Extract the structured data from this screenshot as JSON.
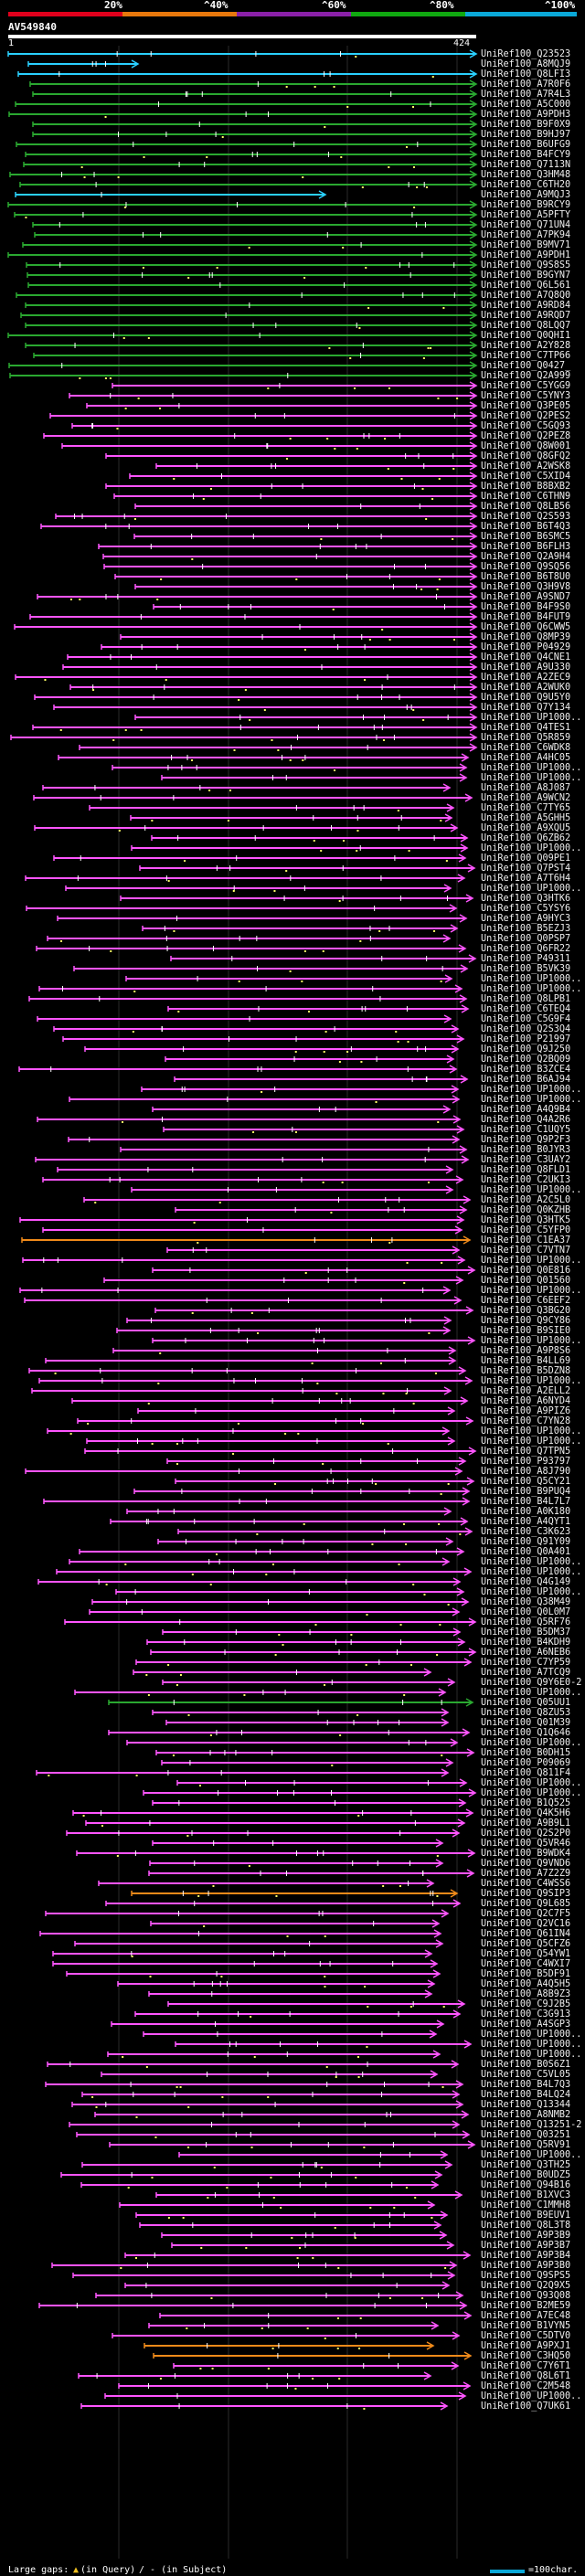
{
  "legend": {
    "ticks": [
      "20%",
      "^40%",
      "^60%",
      "^80%",
      "^100%"
    ],
    "colors": [
      "#e0001c",
      "#e8780c",
      "#8a20a8",
      "#10a810",
      "#0aa8d8"
    ]
  },
  "query": {
    "name": "AV549840",
    "start": "1",
    "end": "424"
  },
  "colors": {
    "bar": "#ff55ff",
    "long_bar": "#2ad0ff",
    "green_bar": "#2aa830",
    "orange_bar": "#f08a1a",
    "gap_mark": "#ffffff",
    "dot": "#ffff66",
    "grid": "#2a2a2a"
  },
  "hits": [
    {
      "id": "UniRef100_Q23523",
      "color": "c"
    },
    {
      "id": "UniRef100_A8MQJ9",
      "color": "c"
    },
    {
      "id": "UniRef100_Q8LFI3",
      "color": "c"
    },
    {
      "id": "UniRef100_A7R0F6",
      "color": "g"
    },
    {
      "id": "UniRef100_A7R4L3",
      "color": "g"
    },
    {
      "id": "UniRef100_A5C000",
      "color": "g"
    },
    {
      "id": "UniRef100_A9PDH3",
      "color": "g"
    },
    {
      "id": "UniRef100_B9F0X9",
      "color": "g"
    },
    {
      "id": "UniRef100_B9HJ97",
      "color": "g"
    },
    {
      "id": "UniRef100_B6UFG9",
      "color": "g"
    },
    {
      "id": "UniRef100_B4FCY9",
      "color": "g"
    },
    {
      "id": "UniRef100_Q7113N",
      "color": "g"
    },
    {
      "id": "UniRef100_Q3HM48",
      "color": "g"
    },
    {
      "id": "UniRef100_C6TH20",
      "color": "g"
    },
    {
      "id": "UniRef100_A9MQJ3",
      "color": "c"
    },
    {
      "id": "UniRef100_B9RCY9",
      "color": "g"
    },
    {
      "id": "UniRef100_A5PFTY",
      "color": "g"
    },
    {
      "id": "UniRef100_Q71UN4",
      "color": "g"
    },
    {
      "id": "UniRef100_A7PK94",
      "color": "g"
    },
    {
      "id": "UniRef100_B9MV71",
      "color": "g"
    },
    {
      "id": "UniRef100_A9PDH1",
      "color": "g"
    },
    {
      "id": "UniRef100_Q9S8S5",
      "color": "g"
    },
    {
      "id": "UniRef100_B9GYN7",
      "color": "g"
    },
    {
      "id": "UniRef100_Q6L561",
      "color": "g"
    },
    {
      "id": "UniRef100_A7Q8Q0",
      "color": "g"
    },
    {
      "id": "UniRef100_A9RD84",
      "color": "g"
    },
    {
      "id": "UniRef100_A9RQD7",
      "color": "g"
    },
    {
      "id": "UniRef100_Q8LQQ7",
      "color": "g"
    },
    {
      "id": "UniRef100_Q0QHI1",
      "color": "g"
    },
    {
      "id": "UniRef100_A2Y828",
      "color": "g"
    },
    {
      "id": "UniRef100_C7TP66",
      "color": "g"
    },
    {
      "id": "UniRef100_Q0427_",
      "color": "g"
    },
    {
      "id": "UniRef100_Q2A999",
      "color": "g"
    },
    {
      "id": "UniRef100_C5YGG9",
      "color": "p"
    },
    {
      "id": "UniRef100_C5YNY3",
      "color": "p"
    },
    {
      "id": "UniRef100_Q3PE05",
      "color": "p"
    },
    {
      "id": "UniRef100_Q2PES2",
      "color": "p"
    },
    {
      "id": "UniRef100_C5GQ93",
      "color": "p"
    },
    {
      "id": "UniRef100_Q2PEZ8",
      "color": "p"
    },
    {
      "id": "UniRef100_Q8W001",
      "color": "p"
    },
    {
      "id": "UniRef100_Q8GFQ2",
      "color": "p"
    },
    {
      "id": "UniRef100_A2WSK8",
      "color": "p"
    },
    {
      "id": "UniRef100_C5XID4",
      "color": "p"
    },
    {
      "id": "UniRef100_B8BXB2",
      "color": "p"
    },
    {
      "id": "UniRef100_C6THN9",
      "color": "p"
    },
    {
      "id": "UniRef100_Q8LB56",
      "color": "p"
    },
    {
      "id": "UniRef100_Q2S593",
      "color": "p"
    },
    {
      "id": "UniRef100_B6T4Q3",
      "color": "p"
    },
    {
      "id": "UniRef100_B6SMC5",
      "color": "p"
    },
    {
      "id": "UniRef100_B6FLH3",
      "color": "p"
    },
    {
      "id": "UniRef100_Q2A9H4",
      "color": "p"
    },
    {
      "id": "UniRef100_Q9SQ56",
      "color": "p"
    },
    {
      "id": "UniRef100_B6T8U0",
      "color": "p"
    },
    {
      "id": "UniRef100_Q3H9V8",
      "color": "p"
    },
    {
      "id": "UniRef100_A9SND7",
      "color": "p"
    },
    {
      "id": "UniRef100_B4F9S0",
      "color": "p"
    },
    {
      "id": "UniRef100_B4FUT9",
      "color": "p"
    },
    {
      "id": "UniRef100_Q6CWW5",
      "color": "p"
    },
    {
      "id": "UniRef100_Q8MP39",
      "color": "p"
    },
    {
      "id": "UniRef100_P04929",
      "color": "p"
    },
    {
      "id": "UniRef100_Q4CNE1",
      "color": "p"
    },
    {
      "id": "UniRef100_A9U330",
      "color": "p"
    },
    {
      "id": "UniRef100_A2ZEC9",
      "color": "p"
    },
    {
      "id": "UniRef100_A2WUK0",
      "color": "p"
    },
    {
      "id": "UniRef100_Q9U5Y0",
      "color": "p"
    },
    {
      "id": "UniRef100_Q7Y134",
      "color": "p"
    },
    {
      "id": "UniRef100_UP1000..",
      "color": "p"
    },
    {
      "id": "UniRef100_Q4TES1",
      "color": "p"
    },
    {
      "id": "UniRef100_Q5R859",
      "color": "p"
    },
    {
      "id": "UniRef100_C6WDK8",
      "color": "p"
    },
    {
      "id": "UniRef100_A4HC05",
      "color": "p"
    },
    {
      "id": "UniRef100_UP1000..",
      "color": "p"
    },
    {
      "id": "UniRef100_UP1000..",
      "color": "p"
    },
    {
      "id": "UniRef100_A8J087",
      "color": "p"
    },
    {
      "id": "UniRef100_A9WCN2",
      "color": "p"
    },
    {
      "id": "UniRef100_C7TY65",
      "color": "p"
    },
    {
      "id": "UniRef100_A5GHH5",
      "color": "p"
    },
    {
      "id": "UniRef100_A9XQU5",
      "color": "p"
    },
    {
      "id": "UniRef100_Q6ZB62",
      "color": "p"
    },
    {
      "id": "UniRef100_UP1000..",
      "color": "p"
    },
    {
      "id": "UniRef100_Q09PE1",
      "color": "p"
    },
    {
      "id": "UniRef100_Q7PST4",
      "color": "p"
    },
    {
      "id": "UniRef100_A7T6H4",
      "color": "p"
    },
    {
      "id": "UniRef100_UP1000..",
      "color": "p"
    },
    {
      "id": "UniRef100_Q3HTK6",
      "color": "p"
    },
    {
      "id": "UniRef100_C5YSY6",
      "color": "p"
    },
    {
      "id": "UniRef100_A9HYC3",
      "color": "p"
    },
    {
      "id": "UniRef100_B5EZJ3",
      "color": "p"
    },
    {
      "id": "UniRef100_Q0PSP7",
      "color": "p"
    },
    {
      "id": "UniRef100_Q6FR22",
      "color": "p"
    },
    {
      "id": "UniRef100_P49311",
      "color": "p"
    },
    {
      "id": "UniRef100_B5VK39",
      "color": "p"
    },
    {
      "id": "UniRef100_UP1000..",
      "color": "p"
    },
    {
      "id": "UniRef100_UP1000..",
      "color": "p"
    },
    {
      "id": "UniRef100_Q8LPB1",
      "color": "p"
    },
    {
      "id": "UniRef100_C6TEQ4",
      "color": "p"
    },
    {
      "id": "UniRef100_C5G9F4",
      "color": "p"
    },
    {
      "id": "UniRef100_Q2S3Q4",
      "color": "p"
    },
    {
      "id": "UniRef100_P21997",
      "color": "p"
    },
    {
      "id": "UniRef100_Q9J250",
      "color": "p"
    },
    {
      "id": "UniRef100_Q2BQ09",
      "color": "p"
    },
    {
      "id": "UniRef100_B3ZCE4",
      "color": "p"
    },
    {
      "id": "UniRef100_B6AJ94",
      "color": "p"
    },
    {
      "id": "UniRef100_UP1000..",
      "color": "p"
    },
    {
      "id": "UniRef100_UP1000..",
      "color": "p"
    },
    {
      "id": "UniRef100_A4Q9B4",
      "color": "p"
    },
    {
      "id": "UniRef100_Q4A2R6",
      "color": "p"
    },
    {
      "id": "UniRef100_C1UQY5",
      "color": "p"
    },
    {
      "id": "UniRef100_Q9P2F3",
      "color": "p"
    },
    {
      "id": "UniRef100_B0JYR3",
      "color": "p"
    },
    {
      "id": "UniRef100_C3UAY2",
      "color": "p"
    },
    {
      "id": "UniRef100_Q8FLD1",
      "color": "p"
    },
    {
      "id": "UniRef100_C2UKI3",
      "color": "p"
    },
    {
      "id": "UniRef100_UP1000..",
      "color": "p"
    },
    {
      "id": "UniRef100_A2C5L0",
      "color": "p"
    },
    {
      "id": "UniRef100_Q0KZHB",
      "color": "p"
    },
    {
      "id": "UniRef100_Q3HTK5",
      "color": "p"
    },
    {
      "id": "UniRef100_C5YFP0",
      "color": "p"
    },
    {
      "id": "UniRef100_C1EA37",
      "color": "o"
    },
    {
      "id": "UniRef100_C7VTN7",
      "color": "p"
    },
    {
      "id": "UniRef100_UP1000..",
      "color": "p"
    },
    {
      "id": "UniRef100_Q0E816",
      "color": "p"
    },
    {
      "id": "UniRef100_Q01560",
      "color": "p"
    },
    {
      "id": "UniRef100_UP1000..",
      "color": "p"
    },
    {
      "id": "UniRef100_C6EEF2",
      "color": "p"
    },
    {
      "id": "UniRef100_Q3BG20",
      "color": "p"
    },
    {
      "id": "UniRef100_Q9CY86",
      "color": "p"
    },
    {
      "id": "UniRef100_B9SIE0",
      "color": "p"
    },
    {
      "id": "UniRef100_UP1000..",
      "color": "p"
    },
    {
      "id": "UniRef100_A9P8S6",
      "color": "p"
    },
    {
      "id": "UniRef100_B4LL69",
      "color": "p"
    },
    {
      "id": "UniRef100_B5DZN8",
      "color": "p"
    },
    {
      "id": "UniRef100_UP1000..",
      "color": "p"
    },
    {
      "id": "UniRef100_A2ELL2",
      "color": "p"
    },
    {
      "id": "UniRef100_A6NYD4",
      "color": "p"
    },
    {
      "id": "UniRef100_A9PIZ6",
      "color": "p"
    },
    {
      "id": "UniRef100_C7YN28",
      "color": "p"
    },
    {
      "id": "UniRef100_UP1000..",
      "color": "p"
    },
    {
      "id": "UniRef100_UP1000..",
      "color": "p"
    },
    {
      "id": "UniRef100_Q7TPN5",
      "color": "p"
    },
    {
      "id": "UniRef100_P93797",
      "color": "p"
    },
    {
      "id": "UniRef100_A8J790",
      "color": "p"
    },
    {
      "id": "UniRef100_Q5CY21",
      "color": "p"
    },
    {
      "id": "UniRef100_B9PUQ4",
      "color": "p"
    },
    {
      "id": "UniRef100_B4L7L7",
      "color": "p"
    },
    {
      "id": "UniRef100_A0K180",
      "color": "p"
    },
    {
      "id": "UniRef100_A4QYT1",
      "color": "p"
    },
    {
      "id": "UniRef100_C3K623",
      "color": "p"
    },
    {
      "id": "UniRef100_Q91Y09",
      "color": "p"
    },
    {
      "id": "UniRef100_Q0A401",
      "color": "p"
    },
    {
      "id": "UniRef100_UP1000..",
      "color": "p"
    },
    {
      "id": "UniRef100_UP1000..",
      "color": "p"
    },
    {
      "id": "UniRef100_Q4G149",
      "color": "p"
    },
    {
      "id": "UniRef100_UP1000..",
      "color": "p"
    },
    {
      "id": "UniRef100_Q38M49",
      "color": "p"
    },
    {
      "id": "UniRef100_Q0L0M7",
      "color": "p"
    },
    {
      "id": "UniRef100_Q5RF76",
      "color": "p"
    },
    {
      "id": "UniRef100_B5DM37",
      "color": "p"
    },
    {
      "id": "UniRef100_B4KDH9",
      "color": "p"
    },
    {
      "id": "UniRef100_A6NEB6",
      "color": "p"
    },
    {
      "id": "UniRef100_C7YP59",
      "color": "p"
    },
    {
      "id": "UniRef100_A7TCQ9",
      "color": "p"
    },
    {
      "id": "UniRef100_Q9Y6E0-2",
      "color": "p"
    },
    {
      "id": "UniRef100_UP1000..",
      "color": "p"
    },
    {
      "id": "UniRef100_Q05UU1",
      "color": "g"
    },
    {
      "id": "UniRef100_Q8ZU53",
      "color": "p"
    },
    {
      "id": "UniRef100_Q01M39",
      "color": "p"
    },
    {
      "id": "UniRef100_Q1Q646",
      "color": "p"
    },
    {
      "id": "UniRef100_UP1000..",
      "color": "p"
    },
    {
      "id": "UniRef100_B0DH15",
      "color": "p"
    },
    {
      "id": "UniRef100_P09069",
      "color": "p"
    },
    {
      "id": "UniRef100_Q811F4",
      "color": "p"
    },
    {
      "id": "UniRef100_UP1000..",
      "color": "p"
    },
    {
      "id": "UniRef100_UP1000..",
      "color": "p"
    },
    {
      "id": "UniRef100_B1Q525",
      "color": "p"
    },
    {
      "id": "UniRef100_Q4K5H6",
      "color": "p"
    },
    {
      "id": "UniRef100_A9B9L1",
      "color": "p"
    },
    {
      "id": "UniRef100_Q2S2P0",
      "color": "p"
    },
    {
      "id": "UniRef100_Q5VR46",
      "color": "p"
    },
    {
      "id": "UniRef100_B9WDK4",
      "color": "p"
    },
    {
      "id": "UniRef100_Q9VND6",
      "color": "p"
    },
    {
      "id": "UniRef100_A7Z2Z9",
      "color": "p"
    },
    {
      "id": "UniRef100_C4WSS6",
      "color": "p"
    },
    {
      "id": "UniRef100_Q9SIP3",
      "color": "o"
    },
    {
      "id": "UniRef100_Q9L685",
      "color": "p"
    },
    {
      "id": "UniRef100_Q2C7F5",
      "color": "p"
    },
    {
      "id": "UniRef100_Q2VC16",
      "color": "p"
    },
    {
      "id": "UniRef100_Q61IN4",
      "color": "p"
    },
    {
      "id": "UniRef100_Q5CFZ6",
      "color": "p"
    },
    {
      "id": "UniRef100_Q54YW1",
      "color": "p"
    },
    {
      "id": "UniRef100_C4WXI7",
      "color": "p"
    },
    {
      "id": "UniRef100_B5DF91",
      "color": "p"
    },
    {
      "id": "UniRef100_A4Q5H5",
      "color": "p"
    },
    {
      "id": "UniRef100_A8B9Z3",
      "color": "p"
    },
    {
      "id": "UniRef100_C9J2B5",
      "color": "p"
    },
    {
      "id": "UniRef100_C3G913",
      "color": "p"
    },
    {
      "id": "UniRef100_A4SGP3",
      "color": "p"
    },
    {
      "id": "UniRef100_UP1000..",
      "color": "p"
    },
    {
      "id": "UniRef100_UP1000..",
      "color": "p"
    },
    {
      "id": "UniRef100_UP1000..",
      "color": "p"
    },
    {
      "id": "UniRef100_B0S6Z1",
      "color": "p"
    },
    {
      "id": "UniRef100_C5VL05",
      "color": "p"
    },
    {
      "id": "UniRef100_B4L7Q3",
      "color": "p"
    },
    {
      "id": "UniRef100_B4LQ24",
      "color": "p"
    },
    {
      "id": "UniRef100_Q13344",
      "color": "p"
    },
    {
      "id": "UniRef100_A8NMB2",
      "color": "p"
    },
    {
      "id": "UniRef100_Q13251-2",
      "color": "p"
    },
    {
      "id": "UniRef100_Q03251",
      "color": "p"
    },
    {
      "id": "UniRef100_Q5RV91",
      "color": "p"
    },
    {
      "id": "UniRef100_UP1000..",
      "color": "p"
    },
    {
      "id": "UniRef100_Q3TH25",
      "color": "p"
    },
    {
      "id": "UniRef100_B0UDZ5",
      "color": "p"
    },
    {
      "id": "UniRef100_Q94B16",
      "color": "p"
    },
    {
      "id": "UniRef100_B1XVC3",
      "color": "p"
    },
    {
      "id": "UniRef100_C1MMH8",
      "color": "p"
    },
    {
      "id": "UniRef100_B9EUV1",
      "color": "p"
    },
    {
      "id": "UniRef100_Q8L3T8",
      "color": "p"
    },
    {
      "id": "UniRef100_A9P3B9",
      "color": "p"
    },
    {
      "id": "UniRef100_A9P3B7",
      "color": "p"
    },
    {
      "id": "UniRef100_A9P3B4",
      "color": "p"
    },
    {
      "id": "UniRef100_A9P3B0",
      "color": "p"
    },
    {
      "id": "UniRef100_Q9SPS5",
      "color": "p"
    },
    {
      "id": "UniRef100_Q2Q9X5",
      "color": "p"
    },
    {
      "id": "UniRef100_Q93Q08",
      "color": "p"
    },
    {
      "id": "UniRef100_B2ME59",
      "color": "p"
    },
    {
      "id": "UniRef100_A7EC48",
      "color": "p"
    },
    {
      "id": "UniRef100_B1VYN5",
      "color": "p"
    },
    {
      "id": "UniRef100_C5DTV0",
      "color": "p"
    },
    {
      "id": "UniRef100_A9PXJ1",
      "color": "o"
    },
    {
      "id": "UniRef100_C3HQ50",
      "color": "o"
    },
    {
      "id": "UniRef100_C7Y6T1",
      "color": "p"
    },
    {
      "id": "UniRef100_Q8L6T1",
      "color": "p"
    },
    {
      "id": "UniRef100_C2M548",
      "color": "p"
    },
    {
      "id": "UniRef100_UP1000..",
      "color": "p"
    },
    {
      "id": "UniRef100_Q7UK61",
      "color": "p"
    }
  ],
  "footer": {
    "large_gaps": "Large gaps:",
    "gap_query": "(in Query)",
    "gap_subject": "/ - (in Subject)",
    "scale": "=100char."
  }
}
